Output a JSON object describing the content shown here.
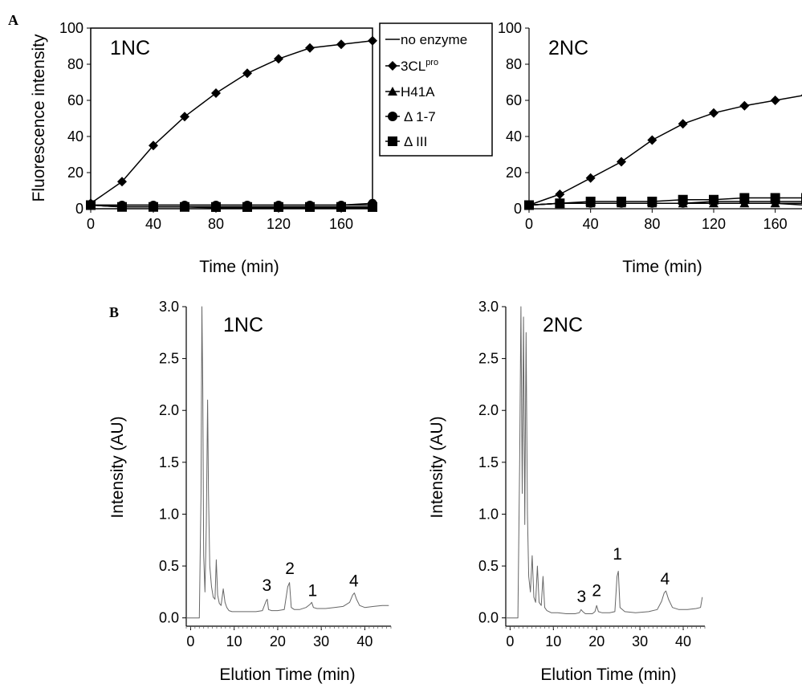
{
  "panel_labels": [
    "A",
    "B"
  ],
  "legend": {
    "entries": [
      {
        "label": "no enzyme",
        "marker": "none"
      },
      {
        "label": "3CL",
        "sup": "pro",
        "marker": "diamond"
      },
      {
        "label": "H41A",
        "marker": "triangle"
      },
      {
        "label": "Δ 1-7",
        "marker": "circle"
      },
      {
        "label": "Δ III",
        "marker": "square"
      }
    ]
  },
  "chart_data": [
    {
      "type": "line",
      "panel": "A",
      "title": "1NC",
      "xlabel": "Time (min)",
      "ylabel": "Fluorescence intensity",
      "xlim": [
        0,
        180
      ],
      "ylim": [
        0,
        100
      ],
      "xticks": [
        0,
        40,
        80,
        120,
        160
      ],
      "yticks": [
        0,
        20,
        40,
        60,
        80,
        100
      ],
      "grid": false,
      "series": [
        {
          "name": "no enzyme",
          "marker": "none",
          "x": [
            0,
            20,
            40,
            60,
            80,
            100,
            120,
            140,
            160,
            180
          ],
          "y": [
            2,
            2,
            2,
            2,
            2,
            2,
            2,
            2,
            2,
            2
          ]
        },
        {
          "name": "3CLpro",
          "marker": "diamond",
          "x": [
            0,
            20,
            40,
            60,
            80,
            100,
            120,
            140,
            160,
            180
          ],
          "y": [
            3,
            15,
            35,
            51,
            64,
            75,
            83,
            89,
            91,
            93
          ]
        },
        {
          "name": "H41A",
          "marker": "triangle",
          "x": [
            0,
            20,
            40,
            60,
            80,
            100,
            120,
            140,
            160,
            180
          ],
          "y": [
            2,
            1,
            1,
            1,
            0.5,
            0.5,
            0.5,
            0.5,
            0.5,
            0.5
          ]
        },
        {
          "name": "Δ 1-7",
          "marker": "circle",
          "x": [
            0,
            20,
            40,
            60,
            80,
            100,
            120,
            140,
            160,
            180
          ],
          "y": [
            2,
            2,
            2,
            2,
            2,
            2,
            2,
            2,
            2,
            3
          ]
        },
        {
          "name": "Δ III",
          "marker": "square",
          "x": [
            0,
            20,
            40,
            60,
            80,
            100,
            120,
            140,
            160,
            180
          ],
          "y": [
            2,
            1,
            1,
            1,
            1,
            1,
            1,
            1,
            1,
            1
          ]
        }
      ]
    },
    {
      "type": "line",
      "panel": "A",
      "title": "2NC",
      "xlabel": "Time (min)",
      "ylabel": "",
      "xlim": [
        0,
        180
      ],
      "ylim": [
        0,
        100
      ],
      "xticks": [
        0,
        40,
        80,
        120,
        160
      ],
      "yticks": [
        0,
        20,
        40,
        60,
        80,
        100
      ],
      "grid": false,
      "series": [
        {
          "name": "no enzyme",
          "marker": "none",
          "x": [
            0,
            20,
            40,
            60,
            80,
            100,
            120,
            140,
            160,
            180
          ],
          "y": [
            2,
            3,
            3,
            3,
            3,
            3,
            3,
            3,
            3,
            3
          ]
        },
        {
          "name": "3CLpro",
          "marker": "diamond",
          "x": [
            0,
            20,
            40,
            60,
            80,
            100,
            120,
            140,
            160,
            180
          ],
          "y": [
            2,
            8,
            17,
            26,
            38,
            47,
            53,
            57,
            60,
            63
          ]
        },
        {
          "name": "H41A",
          "marker": "triangle",
          "x": [
            0,
            20,
            40,
            60,
            80,
            100,
            120,
            140,
            160,
            180
          ],
          "y": [
            2,
            3,
            3,
            3,
            3,
            3,
            3,
            3,
            3,
            2
          ]
        },
        {
          "name": "Δ 1-7",
          "marker": "circle",
          "x": [
            0,
            20,
            40,
            60,
            80,
            100,
            120,
            140,
            160,
            180
          ],
          "y": [
            2,
            3,
            3,
            3,
            3,
            3,
            4,
            4,
            4,
            4
          ]
        },
        {
          "name": "Δ III",
          "marker": "square",
          "x": [
            0,
            20,
            40,
            60,
            80,
            100,
            120,
            140,
            160,
            180
          ],
          "y": [
            2,
            3,
            4,
            4,
            4,
            5,
            5,
            6,
            6,
            6
          ]
        }
      ]
    },
    {
      "type": "line",
      "panel": "B",
      "title": "1NC",
      "xlabel": "Elution Time (min)",
      "ylabel": "Intensity (AU)",
      "xlim": [
        -1,
        46
      ],
      "ylim": [
        -0.08,
        3.0
      ],
      "xticks": [
        0,
        10,
        20,
        30,
        40
      ],
      "yticks": [
        0.0,
        0.5,
        1.0,
        1.5,
        2.0,
        2.5,
        3.0
      ],
      "ytick_labels": [
        "0.0",
        "0.5",
        "1.0",
        "1.5",
        "2.0",
        "2.5",
        "3.0"
      ],
      "grid": false,
      "color": "#666666",
      "peak_labels": [
        {
          "label": "3",
          "x": 17.5,
          "y": 0.2
        },
        {
          "label": "2",
          "x": 22.8,
          "y": 0.36
        },
        {
          "label": "1",
          "x": 28.0,
          "y": 0.15
        },
        {
          "label": "4",
          "x": 37.5,
          "y": 0.24
        }
      ],
      "series": [
        {
          "x": [
            -1,
            2,
            2.4,
            2.6,
            2.8,
            3.0,
            3.3,
            3.6,
            3.9,
            4.1,
            4.4,
            4.8,
            5.2,
            5.6,
            5.9,
            6.2,
            6.6,
            7.0,
            7.5,
            7.9,
            8.3,
            8.8,
            9.5,
            11,
            13,
            15,
            16.5,
            17.3,
            17.6,
            17.9,
            18.6,
            20,
            21.5,
            22.3,
            22.7,
            23.1,
            23.8,
            25,
            26.5,
            27.4,
            27.8,
            28.2,
            29,
            31,
            33,
            35,
            36.5,
            37.2,
            37.6,
            38.1,
            38.8,
            40,
            42,
            44,
            45.5
          ],
          "y": [
            0.0,
            0.0,
            1.2,
            3.0,
            2.2,
            0.6,
            0.25,
            0.9,
            2.1,
            1.2,
            0.5,
            0.3,
            0.2,
            0.18,
            0.56,
            0.22,
            0.14,
            0.12,
            0.28,
            0.15,
            0.1,
            0.07,
            0.06,
            0.06,
            0.06,
            0.06,
            0.07,
            0.16,
            0.18,
            0.08,
            0.07,
            0.07,
            0.08,
            0.3,
            0.34,
            0.1,
            0.08,
            0.08,
            0.1,
            0.13,
            0.15,
            0.1,
            0.09,
            0.09,
            0.1,
            0.11,
            0.15,
            0.22,
            0.24,
            0.18,
            0.12,
            0.1,
            0.11,
            0.12,
            0.12
          ]
        }
      ]
    },
    {
      "type": "line",
      "panel": "B",
      "title": "2NC",
      "xlabel": "Elution Time (min)",
      "ylabel": "Intensity (AU)",
      "xlim": [
        -1,
        45
      ],
      "ylim": [
        -0.08,
        3.0
      ],
      "xticks": [
        0,
        10,
        20,
        30,
        40
      ],
      "yticks": [
        0.0,
        0.5,
        1.0,
        1.5,
        2.0,
        2.5,
        3.0
      ],
      "ytick_labels": [
        "0.0",
        "0.5",
        "1.0",
        "1.5",
        "2.0",
        "2.5",
        "3.0"
      ],
      "grid": false,
      "color": "#666666",
      "peak_labels": [
        {
          "label": "3",
          "x": 16.5,
          "y": 0.09
        },
        {
          "label": "2",
          "x": 20.0,
          "y": 0.15
        },
        {
          "label": "1",
          "x": 24.8,
          "y": 0.5
        },
        {
          "label": "4",
          "x": 35.8,
          "y": 0.26
        }
      ],
      "series": [
        {
          "x": [
            -1,
            1.8,
            2.2,
            2.5,
            2.8,
            3.1,
            3.4,
            3.7,
            4.0,
            4.3,
            4.7,
            5.1,
            5.5,
            5.9,
            6.3,
            6.7,
            7.2,
            7.6,
            8.0,
            8.5,
            9.5,
            11,
            13,
            15,
            16.0,
            16.4,
            16.8,
            17.4,
            19,
            19.6,
            20.0,
            20.4,
            21.2,
            23,
            24.2,
            24.7,
            25.0,
            25.4,
            26.5,
            29,
            32,
            34.0,
            35.0,
            35.6,
            36.0,
            36.6,
            37.5,
            39,
            41,
            43,
            44,
            44.4
          ],
          "y": [
            0.0,
            0.0,
            1.5,
            3.0,
            1.2,
            2.9,
            0.9,
            2.75,
            1.0,
            0.4,
            0.25,
            0.6,
            0.2,
            0.15,
            0.5,
            0.15,
            0.12,
            0.4,
            0.1,
            0.07,
            0.05,
            0.05,
            0.04,
            0.04,
            0.05,
            0.08,
            0.06,
            0.04,
            0.04,
            0.06,
            0.12,
            0.06,
            0.05,
            0.05,
            0.06,
            0.4,
            0.45,
            0.1,
            0.06,
            0.05,
            0.06,
            0.08,
            0.16,
            0.24,
            0.26,
            0.18,
            0.1,
            0.08,
            0.08,
            0.09,
            0.1,
            0.2
          ]
        }
      ]
    }
  ]
}
